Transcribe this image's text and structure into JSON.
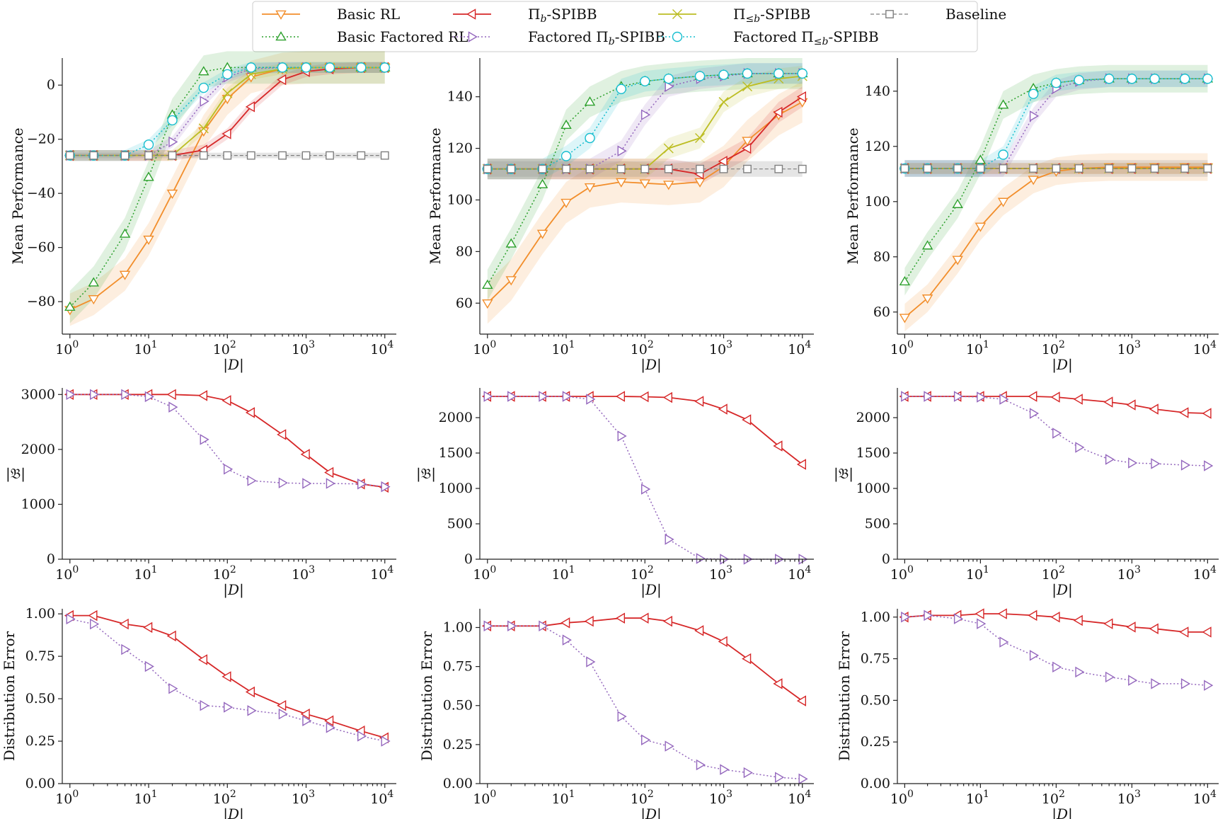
{
  "legend": {
    "entries": [
      {
        "id": "basic_rl",
        "label": "Basic RL"
      },
      {
        "id": "pib",
        "label": "Πb-SPIBB"
      },
      {
        "id": "pileb",
        "label": "Π≤b-SPIBB"
      },
      {
        "id": "baseline",
        "label": "Baseline"
      },
      {
        "id": "basic_factored_rl",
        "label": "Basic Factored RL"
      },
      {
        "id": "factored_pib",
        "label": "Factored Πb-SPIBB"
      },
      {
        "id": "factored_pileb",
        "label": "Factored Π≤b-SPIBB"
      }
    ]
  },
  "colors": {
    "basic_rl": "#f28e2b",
    "basic_factored_rl": "#2ca02c",
    "pib": "#d62728",
    "factored_pib": "#9467bd",
    "pileb": "#bcbd22",
    "factored_pileb": "#17becf",
    "baseline": "#7f7f7f"
  },
  "chart_data": [
    {
      "type": "line",
      "id": "perf1",
      "xlabel": "|D|",
      "ylabel": "Mean Performance",
      "xscale": "log",
      "xlim": [
        1,
        10000
      ],
      "ylim": [
        -92,
        10
      ],
      "yticks": [
        0,
        -20,
        -40,
        -60,
        -80
      ],
      "x": [
        1,
        2,
        5,
        10,
        20,
        50,
        100,
        200,
        500,
        1000,
        2000,
        5000,
        10000
      ],
      "series": [
        {
          "id": "basic_rl",
          "values": [
            -83,
            -79,
            -70,
            -57,
            -40,
            -17,
            -5,
            3,
            6,
            6.5,
            6.5,
            6.5,
            6.5
          ],
          "band": 6
        },
        {
          "id": "basic_factored_rl",
          "values": [
            -82,
            -73,
            -55,
            -34,
            -11,
            5,
            6.5,
            6.5,
            6.5,
            6.5,
            6.5,
            6.5,
            6.5
          ],
          "band": 6
        },
        {
          "id": "pib",
          "values": [
            -26,
            -26,
            -26,
            -26,
            -26,
            -24,
            -18,
            -8,
            2,
            5,
            6,
            6.5,
            6.5
          ],
          "band": 2
        },
        {
          "id": "factored_pib",
          "values": [
            -26,
            -26,
            -26,
            -26,
            -21,
            -6,
            3,
            6,
            6.5,
            6.5,
            6.5,
            6.5,
            6.5
          ],
          "band": 2
        },
        {
          "id": "pileb",
          "values": [
            -26,
            -26,
            -26,
            -26,
            -26,
            -16,
            -3,
            4,
            6,
            6.5,
            6.5,
            6.5,
            6.5
          ],
          "band": 2
        },
        {
          "id": "factored_pileb",
          "values": [
            -26,
            -26,
            -26,
            -22,
            -13,
            -1,
            4,
            6.5,
            6.5,
            6.5,
            6.5,
            6.5,
            6.5
          ],
          "band": 2
        },
        {
          "id": "baseline",
          "values": [
            -26,
            -26,
            -26,
            -26,
            -26,
            -26,
            -26,
            -26,
            -26,
            -26,
            -26,
            -26,
            -26
          ],
          "band": 1
        }
      ]
    },
    {
      "type": "line",
      "id": "perf2",
      "xlabel": "|D|",
      "ylabel": "Mean Performance",
      "xscale": "log",
      "xlim": [
        1,
        10000
      ],
      "ylim": [
        48,
        155
      ],
      "yticks": [
        60,
        80,
        100,
        120,
        140
      ],
      "x": [
        1,
        2,
        5,
        10,
        20,
        50,
        100,
        200,
        500,
        1000,
        2000,
        5000,
        10000
      ],
      "series": [
        {
          "id": "basic_rl",
          "values": [
            60,
            69,
            87,
            99,
            105,
            107,
            106.5,
            106,
            107,
            113,
            123,
            133,
            138
          ],
          "band": 8
        },
        {
          "id": "basic_factored_rl",
          "values": [
            67,
            83,
            106,
            129,
            138,
            144,
            146,
            147,
            148,
            148.5,
            149,
            149,
            149
          ],
          "band": 6
        },
        {
          "id": "pib",
          "values": [
            112,
            112,
            112,
            112,
            112,
            112,
            112,
            112,
            110,
            115,
            120,
            134,
            140
          ],
          "band": 4
        },
        {
          "id": "factored_pib",
          "values": [
            112,
            112,
            112,
            112,
            112,
            119,
            133,
            144,
            147,
            148,
            149,
            149,
            149
          ],
          "band": 4
        },
        {
          "id": "pileb",
          "values": [
            112,
            112,
            112,
            112,
            112,
            112,
            112,
            120,
            124,
            138,
            144,
            147,
            148
          ],
          "band": 4
        },
        {
          "id": "factored_pileb",
          "values": [
            112,
            112,
            112,
            117,
            124,
            143,
            146,
            147,
            148,
            148.5,
            149,
            149,
            149
          ],
          "band": 4
        },
        {
          "id": "baseline",
          "values": [
            112,
            112,
            112,
            112,
            112,
            112,
            112,
            112,
            112,
            112,
            112,
            112,
            112
          ],
          "band": 3
        }
      ]
    },
    {
      "type": "line",
      "id": "perf3",
      "xlabel": "|D|",
      "ylabel": "Mean Performance",
      "xscale": "log",
      "xlim": [
        1,
        10000
      ],
      "ylim": [
        52,
        152
      ],
      "yticks": [
        60,
        80,
        100,
        120,
        140
      ],
      "x": [
        1,
        2,
        5,
        10,
        20,
        50,
        100,
        200,
        500,
        1000,
        2000,
        5000,
        10000
      ],
      "series": [
        {
          "id": "basic_rl",
          "values": [
            58,
            65,
            79,
            91,
            100,
            108,
            111,
            112,
            112.5,
            112.5,
            112.5,
            112.5,
            112.5
          ],
          "band": 5
        },
        {
          "id": "basic_factored_rl",
          "values": [
            71,
            84,
            99,
            115,
            135,
            141,
            143,
            144,
            144.5,
            144.5,
            144.5,
            144.5,
            144.5
          ],
          "band": 5
        },
        {
          "id": "pib",
          "values": [
            112,
            112,
            112,
            112,
            112,
            112,
            112,
            112,
            112,
            112,
            112,
            112,
            112
          ],
          "band": 2
        },
        {
          "id": "factored_pib",
          "values": [
            112,
            112,
            112,
            112,
            112,
            131,
            141,
            143.5,
            144.5,
            144.5,
            144.5,
            144.5,
            144.5
          ],
          "band": 3
        },
        {
          "id": "pileb",
          "values": [
            112,
            112,
            112,
            112,
            112,
            112,
            112,
            112,
            112,
            112,
            112,
            112,
            112
          ],
          "band": 2
        },
        {
          "id": "factored_pileb",
          "values": [
            112,
            112,
            112,
            112,
            117,
            139,
            143,
            144,
            144.5,
            144.5,
            144.5,
            144.5,
            144.5
          ],
          "band": 3
        },
        {
          "id": "baseline",
          "values": [
            112,
            112,
            112,
            112,
            112,
            112,
            112,
            112,
            112,
            112,
            112,
            112,
            112
          ],
          "band": 3
        }
      ]
    },
    {
      "type": "line",
      "id": "set1",
      "xlabel": "|D|",
      "ylabel": "|𝔅|",
      "xscale": "log",
      "xlim": [
        1,
        10000
      ],
      "ylim": [
        0,
        3120
      ],
      "yticks": [
        0,
        1000,
        2000,
        3000
      ],
      "x": [
        1,
        2,
        5,
        10,
        20,
        50,
        100,
        200,
        500,
        1000,
        2000,
        5000,
        10000
      ],
      "series": [
        {
          "id": "pib",
          "values": [
            3000,
            3000,
            3000,
            3000,
            3000,
            2980,
            2890,
            2670,
            2270,
            1910,
            1580,
            1370,
            1310
          ]
        },
        {
          "id": "factored_pib",
          "values": [
            3000,
            3000,
            3000,
            2960,
            2770,
            2180,
            1640,
            1430,
            1390,
            1380,
            1380,
            1370,
            1320
          ]
        }
      ]
    },
    {
      "type": "line",
      "id": "set2",
      "xlabel": "|D|",
      "ylabel": "|𝔅|",
      "xscale": "log",
      "xlim": [
        1,
        10000
      ],
      "ylim": [
        0,
        2420
      ],
      "yticks": [
        0,
        500,
        1000,
        1500,
        2000
      ],
      "x": [
        1,
        2,
        5,
        10,
        20,
        50,
        100,
        200,
        500,
        1000,
        2000,
        5000,
        10000
      ],
      "series": [
        {
          "id": "pib",
          "values": [
            2300,
            2300,
            2300,
            2300,
            2300,
            2300,
            2295,
            2285,
            2230,
            2120,
            1970,
            1600,
            1340
          ]
        },
        {
          "id": "factored_pib",
          "values": [
            2300,
            2300,
            2300,
            2300,
            2260,
            1740,
            990,
            280,
            10,
            0,
            0,
            0,
            0
          ]
        }
      ]
    },
    {
      "type": "line",
      "id": "set3",
      "xlabel": "|D|",
      "ylabel": "|𝔅|",
      "xscale": "log",
      "xlim": [
        1,
        10000
      ],
      "ylim": [
        0,
        2420
      ],
      "yticks": [
        0,
        500,
        1000,
        1500,
        2000
      ],
      "x": [
        1,
        2,
        5,
        10,
        20,
        50,
        100,
        200,
        500,
        1000,
        2000,
        5000,
        10000
      ],
      "series": [
        {
          "id": "pib",
          "values": [
            2300,
            2300,
            2300,
            2300,
            2300,
            2300,
            2290,
            2260,
            2220,
            2180,
            2120,
            2070,
            2060
          ]
        },
        {
          "id": "factored_pib",
          "values": [
            2300,
            2300,
            2300,
            2290,
            2260,
            2060,
            1780,
            1580,
            1410,
            1360,
            1350,
            1330,
            1320
          ]
        }
      ]
    },
    {
      "type": "line",
      "id": "err1",
      "xlabel": "|D|",
      "ylabel": "Distribution Error",
      "xscale": "log",
      "xlim": [
        1,
        10000
      ],
      "ylim": [
        0,
        1.03
      ],
      "yticks": [
        0,
        0.25,
        0.5,
        0.75,
        1.0
      ],
      "yticklabels": [
        "0.00",
        "0.25",
        "0.50",
        "0.75",
        "1.00"
      ],
      "x": [
        1,
        2,
        5,
        10,
        20,
        50,
        100,
        200,
        500,
        1000,
        2000,
        5000,
        10000
      ],
      "series": [
        {
          "id": "pib",
          "values": [
            0.99,
            0.99,
            0.94,
            0.92,
            0.87,
            0.73,
            0.63,
            0.54,
            0.46,
            0.41,
            0.37,
            0.31,
            0.27
          ]
        },
        {
          "id": "factored_pib",
          "values": [
            0.97,
            0.94,
            0.79,
            0.69,
            0.56,
            0.46,
            0.45,
            0.43,
            0.41,
            0.37,
            0.33,
            0.28,
            0.25
          ]
        }
      ]
    },
    {
      "type": "line",
      "id": "err2",
      "xlabel": "|D|",
      "ylabel": "Distribution Error",
      "xscale": "log",
      "xlim": [
        1,
        10000
      ],
      "ylim": [
        0,
        1.12
      ],
      "yticks": [
        0,
        0.25,
        0.5,
        0.75,
        1.0
      ],
      "yticklabels": [
        "0.00",
        "0.25",
        "0.50",
        "0.75",
        "1.00"
      ],
      "x": [
        1,
        2,
        5,
        10,
        20,
        50,
        100,
        200,
        500,
        1000,
        2000,
        5000,
        10000
      ],
      "series": [
        {
          "id": "pib",
          "values": [
            1.01,
            1.01,
            1.01,
            1.03,
            1.04,
            1.06,
            1.06,
            1.04,
            0.98,
            0.91,
            0.8,
            0.64,
            0.53
          ]
        },
        {
          "id": "factored_pib",
          "values": [
            1.01,
            1.01,
            1.01,
            0.92,
            0.78,
            0.43,
            0.28,
            0.24,
            0.12,
            0.09,
            0.07,
            0.04,
            0.03
          ]
        }
      ]
    },
    {
      "type": "line",
      "id": "err3",
      "xlabel": "|D|",
      "ylabel": "Distribution Error",
      "xscale": "log",
      "xlim": [
        1,
        10000
      ],
      "ylim": [
        0,
        1.05
      ],
      "yticks": [
        0,
        0.25,
        0.5,
        0.75,
        1.0
      ],
      "yticklabels": [
        "0.00",
        "0.25",
        "0.50",
        "0.75",
        "1.00"
      ],
      "x": [
        1,
        2,
        5,
        10,
        20,
        50,
        100,
        200,
        500,
        1000,
        2000,
        5000,
        10000
      ],
      "series": [
        {
          "id": "pib",
          "values": [
            1.0,
            1.01,
            1.01,
            1.02,
            1.02,
            1.01,
            1.0,
            0.98,
            0.96,
            0.94,
            0.93,
            0.91,
            0.91
          ]
        },
        {
          "id": "factored_pib",
          "values": [
            1.0,
            1.01,
            0.99,
            0.96,
            0.85,
            0.77,
            0.7,
            0.67,
            0.64,
            0.62,
            0.6,
            0.6,
            0.59
          ]
        }
      ]
    }
  ]
}
